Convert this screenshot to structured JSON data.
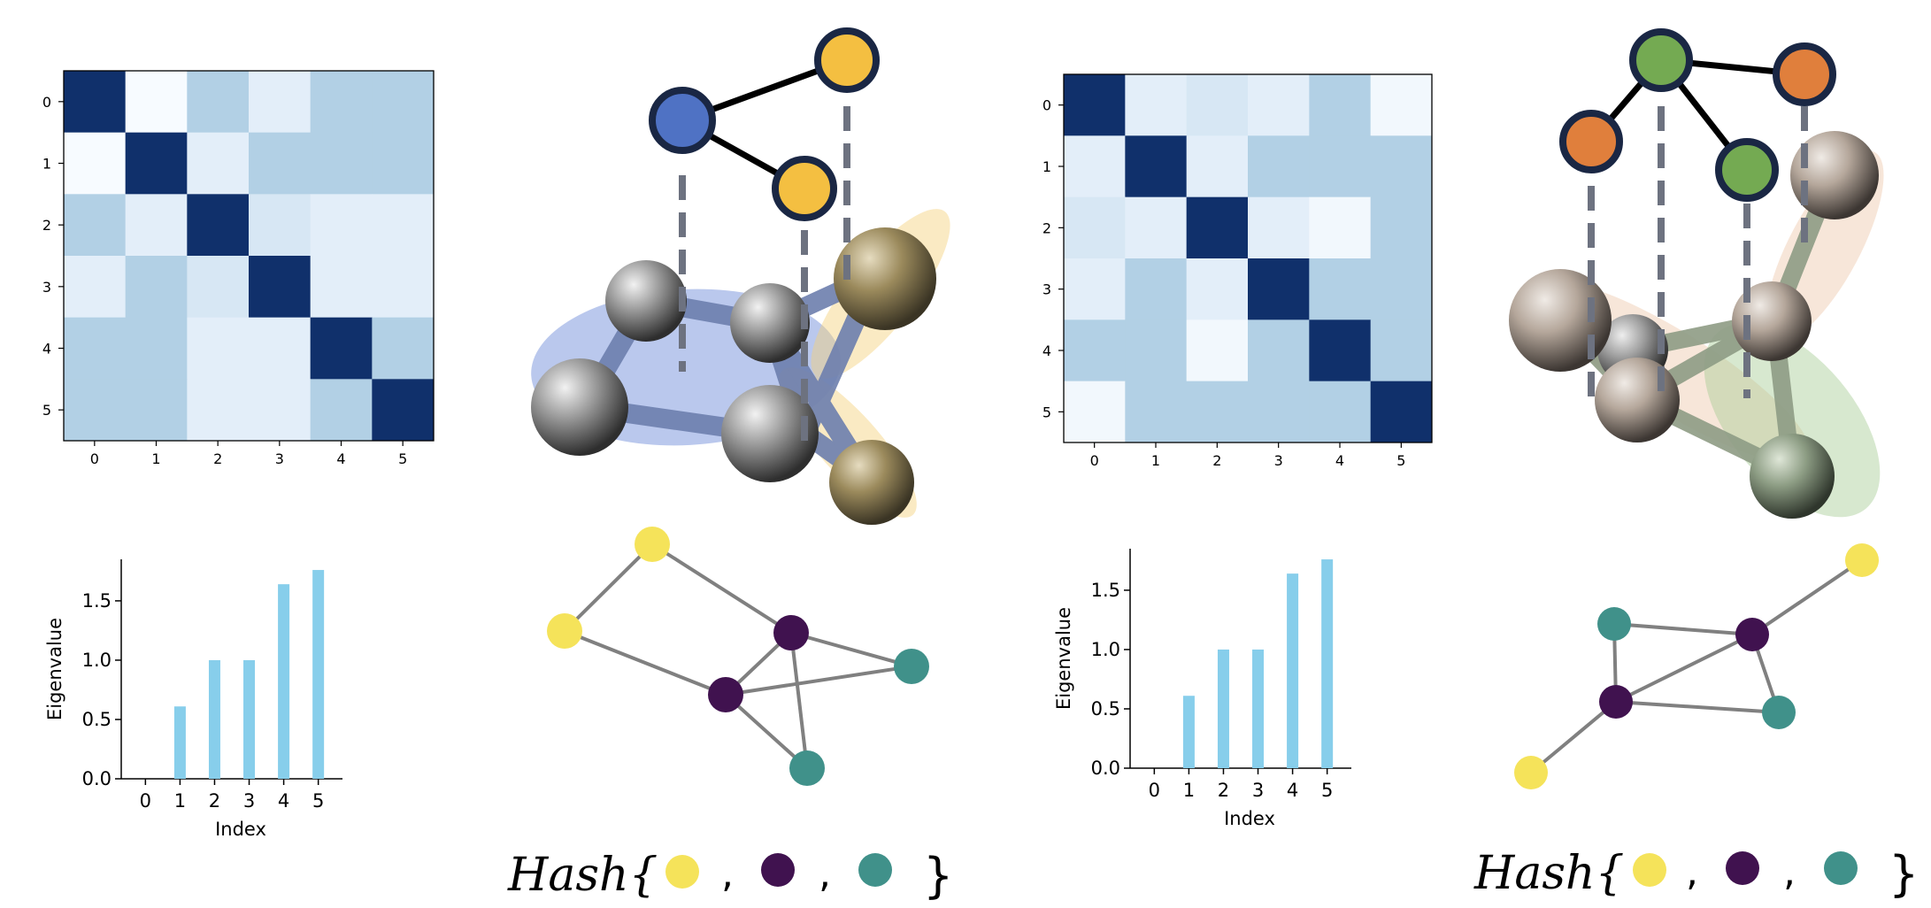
{
  "chart_data": [
    {
      "type": "heatmap",
      "title": "",
      "x_ticks": [
        "0",
        "1",
        "2",
        "3",
        "4",
        "5"
      ],
      "y_ticks": [
        "0",
        "1",
        "2",
        "3",
        "4",
        "5"
      ],
      "colormap": "Blues",
      "matrix": [
        [
          1.0,
          0.0,
          0.3,
          0.08,
          0.3,
          0.3
        ],
        [
          0.0,
          1.0,
          0.08,
          0.3,
          0.3,
          0.3
        ],
        [
          0.3,
          0.08,
          1.0,
          0.13,
          0.08,
          0.08
        ],
        [
          0.08,
          0.3,
          0.13,
          1.0,
          0.08,
          0.08
        ],
        [
          0.3,
          0.3,
          0.08,
          0.08,
          1.0,
          0.3
        ],
        [
          0.3,
          0.3,
          0.08,
          0.08,
          0.3,
          1.0
        ]
      ]
    },
    {
      "type": "bar",
      "categories": [
        "0",
        "1",
        "2",
        "3",
        "4",
        "5"
      ],
      "values": [
        0.0,
        0.61,
        1.0,
        1.0,
        1.64,
        1.76
      ],
      "xlabel": "Index",
      "ylabel": "Eigenvalue",
      "ylim": [
        0,
        1.85
      ],
      "yticks": [
        "0.0",
        "0.5",
        "1.0",
        "1.5"
      ],
      "color": "#87ceeb"
    },
    {
      "type": "heatmap",
      "title": "",
      "x_ticks": [
        "0",
        "1",
        "2",
        "3",
        "4",
        "5"
      ],
      "y_ticks": [
        "0",
        "1",
        "2",
        "3",
        "4",
        "5"
      ],
      "colormap": "Blues",
      "matrix": [
        [
          1.0,
          0.08,
          0.13,
          0.08,
          0.3,
          0.02
        ],
        [
          0.08,
          1.0,
          0.08,
          0.3,
          0.3,
          0.3
        ],
        [
          0.13,
          0.08,
          1.0,
          0.08,
          0.02,
          0.3
        ],
        [
          0.08,
          0.3,
          0.08,
          1.0,
          0.3,
          0.3
        ],
        [
          0.3,
          0.3,
          0.02,
          0.3,
          1.0,
          0.3
        ],
        [
          0.02,
          0.3,
          0.3,
          0.3,
          0.3,
          1.0
        ]
      ]
    },
    {
      "type": "bar",
      "categories": [
        "0",
        "1",
        "2",
        "3",
        "4",
        "5"
      ],
      "values": [
        0.0,
        0.61,
        1.0,
        1.0,
        1.64,
        1.76
      ],
      "xlabel": "Index",
      "ylabel": "Eigenvalue",
      "ylim": [
        0,
        1.85
      ],
      "yticks": [
        "0.0",
        "0.5",
        "1.0",
        "1.5"
      ],
      "color": "#87ceeb"
    }
  ],
  "hash": {
    "left_label": "Hash{",
    "right_label": "Hash{",
    "separator": ",",
    "close_brace": "}",
    "colors": [
      "#f5e35a",
      "#40124f",
      "#40918a"
    ]
  },
  "graph_colors": {
    "yellow": "#f5e35a",
    "purple": "#40124f",
    "teal": "#40918a",
    "blue_node": "#4f72c4",
    "gold_node": "#f4bf41",
    "green_node": "#74aa52",
    "orange_node": "#e07f3c",
    "node_border": "#1a2744"
  },
  "heatmap_colors": {
    "dark": "#10306b",
    "mid": "#b2d0e5",
    "light": "#e6eef8",
    "lighter": "#dbe5f4",
    "lightest": "#f6fafe"
  }
}
